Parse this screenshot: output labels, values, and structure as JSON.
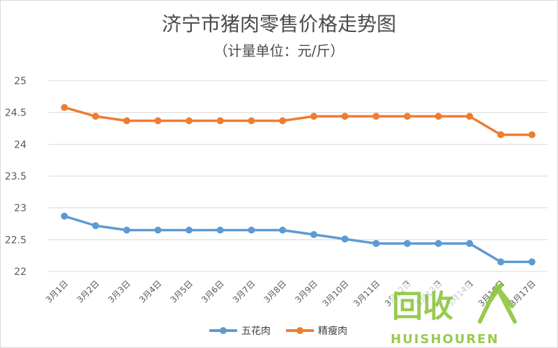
{
  "chart_data": {
    "type": "line",
    "title": "济宁市猪肉零售价格走势图",
    "subtitle": "（计量单位：元/斤）",
    "categories": [
      "3月1日",
      "3月2日",
      "3月3日",
      "3月4日",
      "3月5日",
      "3月6日",
      "3月7日",
      "3月8日",
      "3月9日",
      "3月10日",
      "3月11日",
      "3月12日",
      "3月13日",
      "3月14日",
      "3月16日",
      "3月17日"
    ],
    "series": [
      {
        "name": "五花肉",
        "color": "#5b9bd5",
        "values": [
          22.87,
          22.72,
          22.65,
          22.65,
          22.65,
          22.65,
          22.65,
          22.65,
          22.58,
          22.51,
          22.44,
          22.44,
          22.44,
          22.44,
          22.15,
          22.15
        ]
      },
      {
        "name": "精瘦肉",
        "color": "#ed7d31",
        "values": [
          24.58,
          24.44,
          24.37,
          24.37,
          24.37,
          24.37,
          24.37,
          24.37,
          24.44,
          24.44,
          24.44,
          24.44,
          24.44,
          24.44,
          24.15,
          24.15
        ]
      }
    ],
    "ylim": [
      22,
      25
    ],
    "yticks": [
      22,
      22.5,
      23,
      23.5,
      24,
      24.5,
      25
    ],
    "xlabel": "",
    "ylabel": "",
    "grid": true,
    "legend": "bottom"
  },
  "watermark": {
    "text": "回收",
    "subtext": "HUISHOUREN",
    "color": "#8cc63f"
  }
}
